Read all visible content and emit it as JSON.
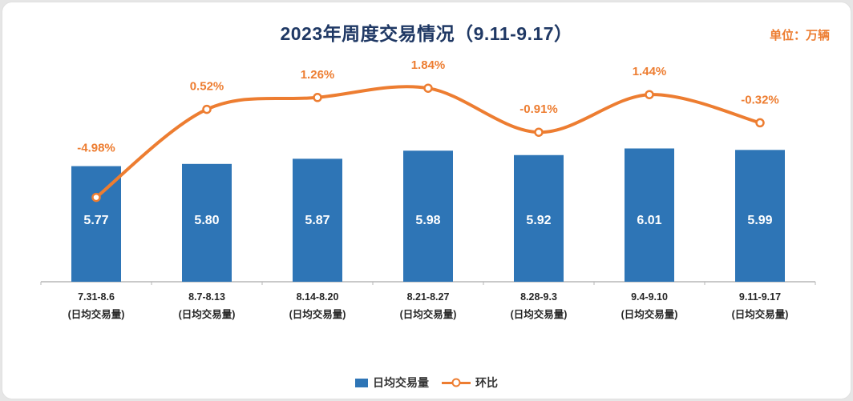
{
  "header": {
    "title": "2023年周度交易情况（9.11-9.17）",
    "unit_label": "单位：万辆"
  },
  "legend": {
    "bar_label": "日均交易量",
    "line_label": "环比"
  },
  "chart_data": {
    "type": "combo",
    "title": "2023年周度交易情况（9.11-9.17）",
    "unit": "万辆",
    "categories": [
      "7.31-8.6",
      "8.7-8.13",
      "8.14-8.20",
      "8.21-8.27",
      "8.28-9.3",
      "9.4-9.10",
      "9.11-9.17"
    ],
    "category_sublabel": "(日均交易量)",
    "series": [
      {
        "name": "日均交易量",
        "type": "bar",
        "color": "#2e75b6",
        "values": [
          5.77,
          5.8,
          5.87,
          5.98,
          5.92,
          6.01,
          5.99
        ],
        "labels": [
          "5.77",
          "5.80",
          "5.87",
          "5.98",
          "5.92",
          "6.01",
          "5.99"
        ]
      },
      {
        "name": "环比",
        "type": "line",
        "color": "#ed7d31",
        "values": [
          -4.98,
          0.52,
          1.26,
          1.84,
          -0.91,
          1.44,
          -0.32
        ],
        "labels": [
          "-4.98%",
          "0.52%",
          "1.26%",
          "1.84%",
          "-0.91%",
          "1.44%",
          "-0.32%"
        ]
      }
    ],
    "legend_position": "bottom",
    "grid": false,
    "xlabel": "",
    "ylabel": ""
  }
}
